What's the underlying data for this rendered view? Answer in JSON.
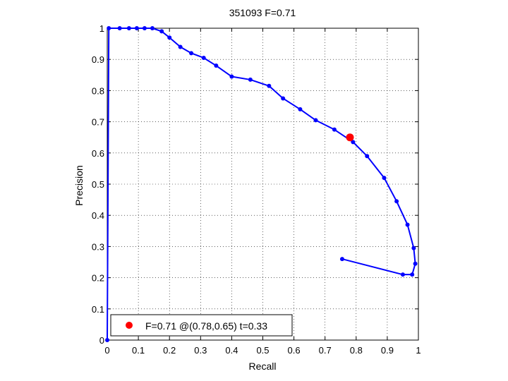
{
  "chart_data": {
    "type": "line",
    "title": "351093 F=0.71",
    "xlabel": "Recall",
    "ylabel": "Precision",
    "xlim": [
      0,
      1
    ],
    "ylim": [
      0,
      1
    ],
    "xticks": [
      "0",
      "0.1",
      "0.2",
      "0.3",
      "0.4",
      "0.5",
      "0.6",
      "0.7",
      "0.8",
      "0.9",
      "1"
    ],
    "yticks": [
      "0",
      "0.1",
      "0.2",
      "0.3",
      "0.4",
      "0.5",
      "0.6",
      "0.7",
      "0.8",
      "0.9",
      "1"
    ],
    "grid": true,
    "series": [
      {
        "color": "#0000ff",
        "x": [
          0,
          0.005,
          0.04,
          0.07,
          0.095,
          0.12,
          0.145,
          0.175,
          0.2,
          0.235,
          0.27,
          0.31,
          0.35,
          0.4,
          0.46,
          0.52,
          0.565,
          0.62,
          0.67,
          0.73,
          0.79,
          0.835,
          0.89,
          0.93,
          0.965,
          0.985,
          0.99,
          0.98,
          0.95,
          0.755
        ],
        "y": [
          0,
          1.0,
          1.0,
          1.0,
          1.0,
          1.0,
          1.0,
          0.99,
          0.97,
          0.94,
          0.92,
          0.905,
          0.88,
          0.845,
          0.835,
          0.815,
          0.775,
          0.74,
          0.705,
          0.675,
          0.635,
          0.59,
          0.52,
          0.445,
          0.37,
          0.295,
          0.245,
          0.21,
          0.21,
          0.26
        ]
      }
    ],
    "highlight": {
      "x": 0.78,
      "y": 0.65,
      "color": "#ff0000"
    },
    "legend": {
      "label": "F=0.71 @(0.78,0.65) t=0.33",
      "position": "bottom-left"
    }
  }
}
